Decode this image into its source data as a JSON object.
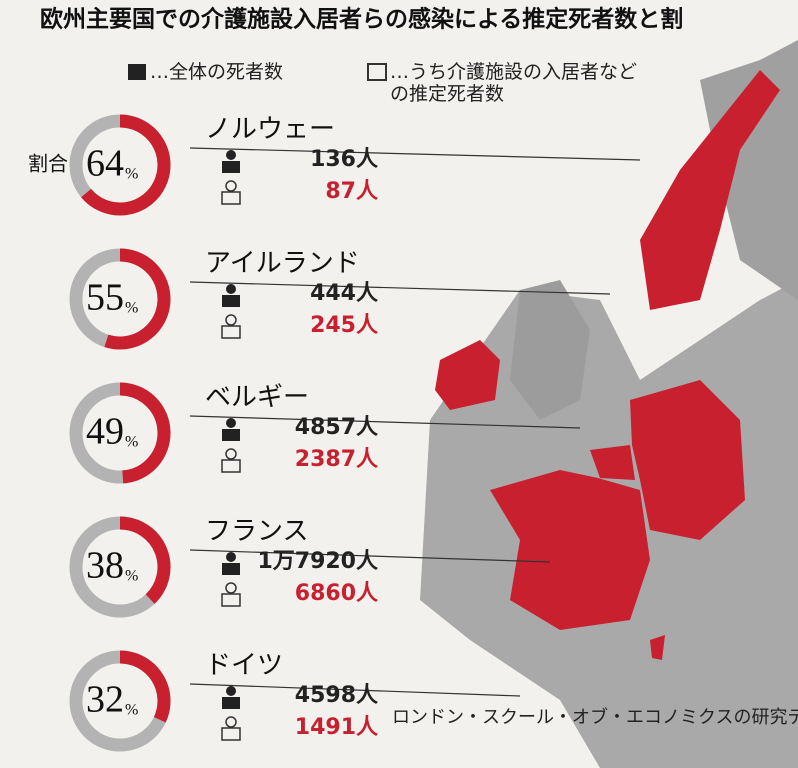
{
  "chart_data": {
    "type": "donut",
    "title": "欧州主要国での介護施設入居者らの感染による推定死者数と割",
    "categories": [
      "ノルウェー",
      "アイルランド",
      "ベルギー",
      "フランス",
      "ドイツ"
    ],
    "share": {
      "name": "割合",
      "values": [
        64,
        55,
        49,
        38,
        32
      ],
      "unit": "%",
      "color": "#c8202f",
      "rest_color": "#b3b3b3"
    },
    "series": [
      {
        "name": "…全体の死者数",
        "color": "#222222",
        "values": [
          136,
          444,
          4857,
          17920,
          4598
        ],
        "value_labels": [
          "136人",
          "444人",
          "4857人",
          "1万7920人",
          "4598人"
        ]
      },
      {
        "name": "…うち介護施設の入居者などの推定死者数",
        "color": "#c8202f",
        "values": [
          87,
          245,
          2387,
          6860,
          1491
        ],
        "value_labels": [
          "87人",
          "245人",
          "2387人",
          "6860人",
          "1491人"
        ]
      }
    ],
    "source": "ロンドン・スクール・オブ・エコノミクスの研究データなどから（死者数"
  }
}
